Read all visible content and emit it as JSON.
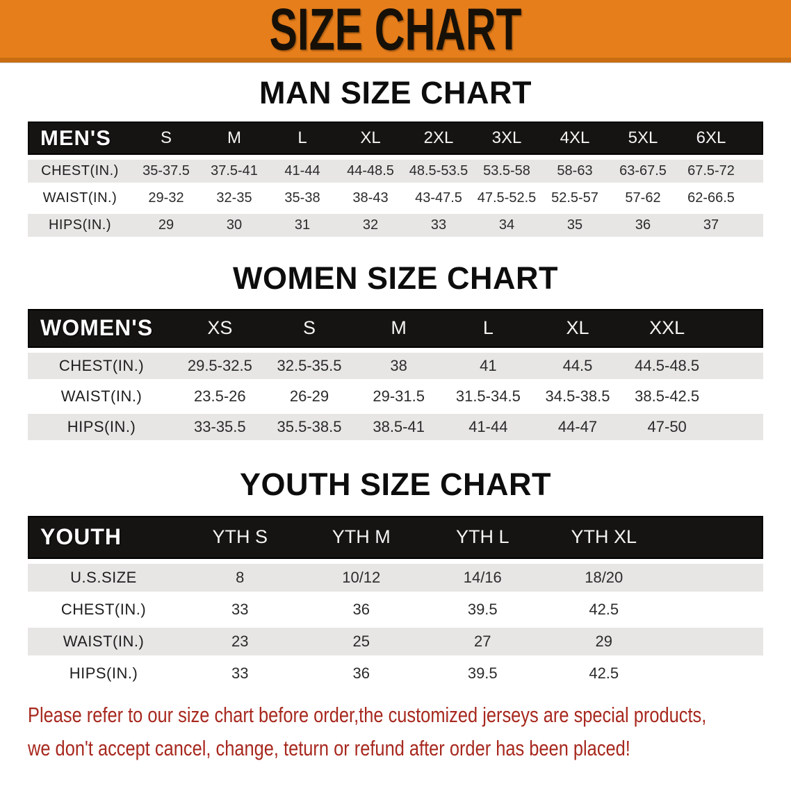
{
  "banner": {
    "title": "SIZE CHART"
  },
  "sections": [
    {
      "name": "men",
      "heading": "MAN SIZE CHART",
      "label": "MEN'S",
      "sizes": [
        "S",
        "M",
        "L",
        "XL",
        "2XL",
        "3XL",
        "4XL",
        "5XL",
        "6XL"
      ],
      "rows": [
        {
          "label": "CHEST(IN.)",
          "values": [
            "35-37.5",
            "37.5-41",
            "41-44",
            "44-48.5",
            "48.5-53.5",
            "53.5-58",
            "58-63",
            "63-67.5",
            "67.5-72"
          ]
        },
        {
          "label": "WAIST(IN.)",
          "values": [
            "29-32",
            "32-35",
            "35-38",
            "38-43",
            "43-47.5",
            "47.5-52.5",
            "52.5-57",
            "57-62",
            "62-66.5"
          ]
        },
        {
          "label": "HIPS(IN.)",
          "values": [
            "29",
            "30",
            "31",
            "32",
            "33",
            "34",
            "35",
            "36",
            "37"
          ]
        }
      ]
    },
    {
      "name": "women",
      "heading": "WOMEN SIZE CHART",
      "label": "WOMEN'S",
      "sizes": [
        "XS",
        "S",
        "M",
        "L",
        "XL",
        "XXL"
      ],
      "rows": [
        {
          "label": "CHEST(IN.)",
          "values": [
            "29.5-32.5",
            "32.5-35.5",
            "38",
            "41",
            "44.5",
            "44.5-48.5"
          ]
        },
        {
          "label": "WAIST(IN.)",
          "values": [
            "23.5-26",
            "26-29",
            "29-31.5",
            "31.5-34.5",
            "34.5-38.5",
            "38.5-42.5"
          ]
        },
        {
          "label": "HIPS(IN.)",
          "values": [
            "33-35.5",
            "35.5-38.5",
            "38.5-41",
            "41-44",
            "44-47",
            "47-50"
          ]
        }
      ]
    },
    {
      "name": "youth",
      "heading": "YOUTH SIZE CHART",
      "label": "YOUTH",
      "sizes": [
        "YTH S",
        "YTH M",
        "YTH L",
        "YTH XL"
      ],
      "rows": [
        {
          "label": "U.S.SIZE",
          "values": [
            "8",
            "10/12",
            "14/16",
            "18/20"
          ]
        },
        {
          "label": "CHEST(IN.)",
          "values": [
            "33",
            "36",
            "39.5",
            "42.5"
          ]
        },
        {
          "label": "WAIST(IN.)",
          "values": [
            "23",
            "25",
            "27",
            "29"
          ]
        },
        {
          "label": "HIPS(IN.)",
          "values": [
            "33",
            "36",
            "39.5",
            "42.5"
          ]
        }
      ]
    }
  ],
  "disclaimer": {
    "line1": "Please refer to our size chart before order,the customized jerseys are special products,",
    "line2": "we don't accept cancel, change, teturn or refund after order has been placed!"
  },
  "colors": {
    "banner_orange": "#e67e1c",
    "banner_orange_dark": "#c96d12",
    "header_bar_black": "#161412",
    "row_stripe_gray": "#e7e6e5",
    "disclaimer_red": "#a7281e"
  }
}
